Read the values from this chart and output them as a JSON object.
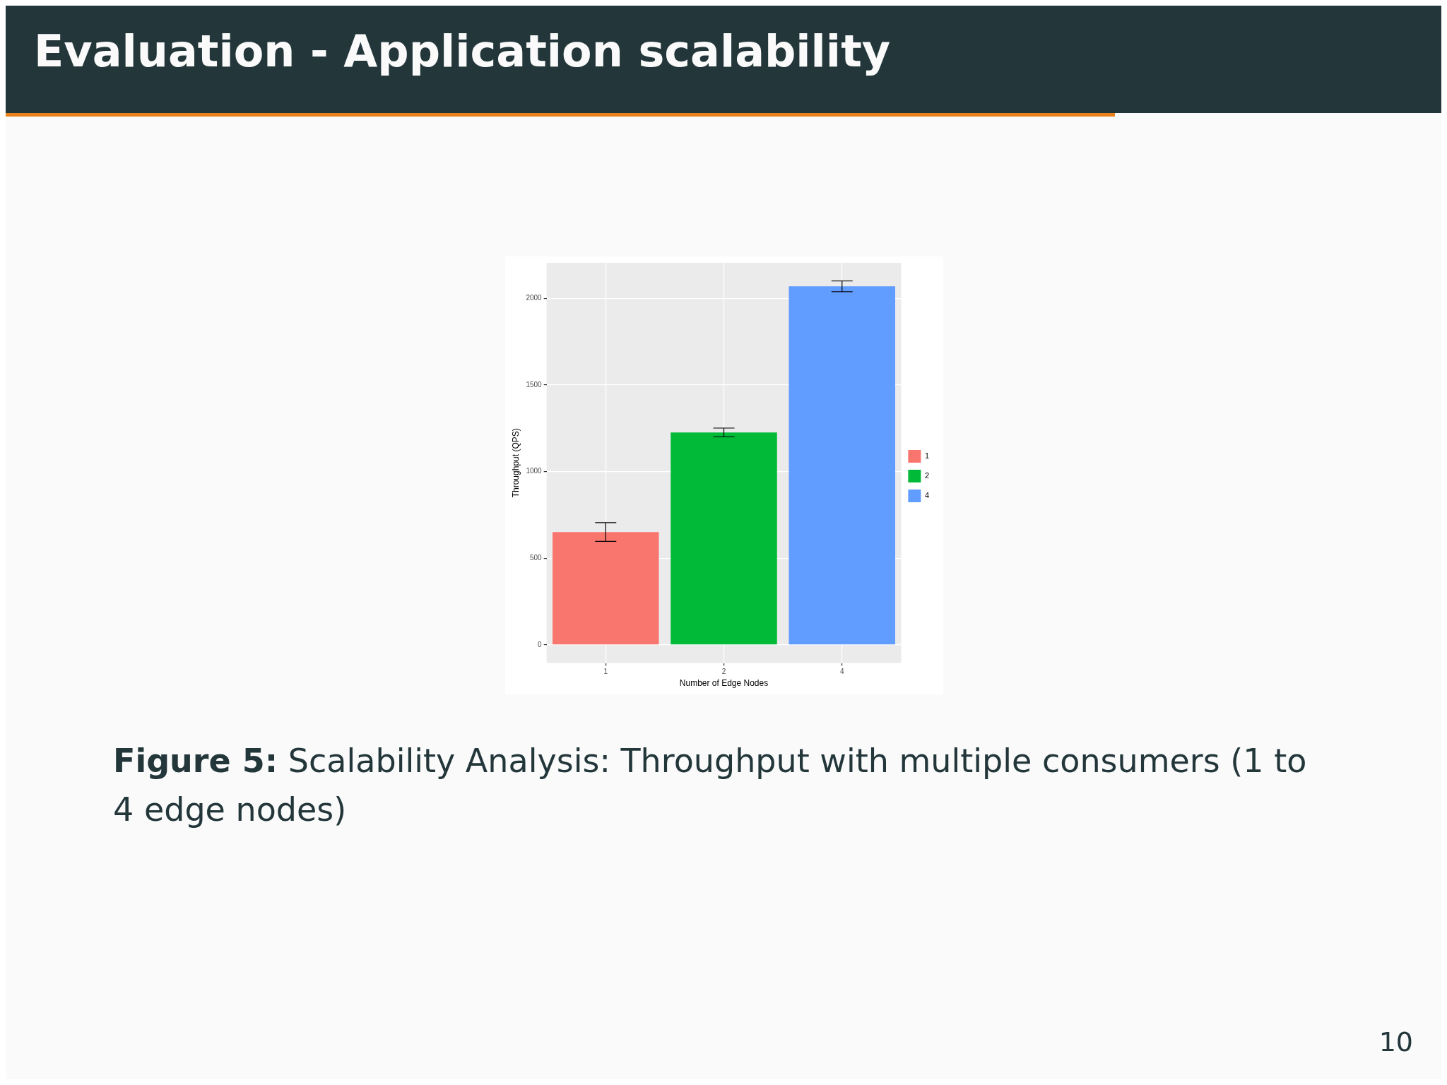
{
  "chart_data": {
    "type": "bar",
    "title": "Evaluation - Application scalability",
    "xlabel": "Number of Edge Nodes",
    "ylabel": "Throughput (QPS)",
    "categories": [
      "1",
      "2",
      "4"
    ],
    "series": [
      {
        "name": "1",
        "color": "#f8766d",
        "values": [
          651,
          null,
          null
        ],
        "errors": [
          54,
          null,
          null
        ]
      },
      {
        "name": "2",
        "color": "#00ba38",
        "values": [
          null,
          1226,
          null
        ],
        "errors": [
          null,
          25,
          null
        ]
      },
      {
        "name": "4",
        "color": "#619cff",
        "values": [
          null,
          null,
          2069
        ],
        "errors": [
          null,
          null,
          31
        ]
      }
    ],
    "ylim": [
      -105,
      2205
    ],
    "yticks": [
      0,
      500,
      1000,
      1500,
      2000
    ],
    "grid": true,
    "legend": "right",
    "annotations": [
      "Figure 5:",
      "Scalability Analysis: Throughput with multiple consumers (1 to 4 edge nodes)",
      "10"
    ]
  }
}
